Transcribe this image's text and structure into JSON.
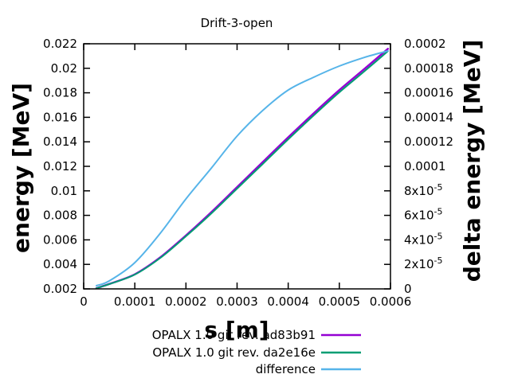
{
  "window": {
    "background": "#ffffff",
    "text_color": "#000000"
  },
  "chart_data": {
    "type": "line",
    "title": "Drift-3-open",
    "xlabel": "s [m]",
    "ylabel_left": "energy [MeV]",
    "ylabel_right": "delta energy [MeV]",
    "x_range": [
      0,
      0.0006
    ],
    "y_left_range": [
      0.002,
      0.022
    ],
    "y_right_range": [
      0,
      0.0002
    ],
    "grid": false,
    "legend_position": "below-bottom-right",
    "x_ticks": {
      "values": [
        0,
        0.0001,
        0.0002,
        0.0003,
        0.0004,
        0.0005,
        0.0006
      ],
      "labels": [
        "0",
        "0.0001",
        "0.0002",
        "0.0003",
        "0.0004",
        "0.0005",
        "0.0006"
      ]
    },
    "y_left_ticks": {
      "values": [
        0.002,
        0.004,
        0.006,
        0.008,
        0.01,
        0.012,
        0.014,
        0.016,
        0.018,
        0.02,
        0.022
      ],
      "labels": [
        "0.002",
        "0.004",
        "0.006",
        "0.008",
        "0.01",
        "0.012",
        "0.014",
        "0.016",
        "0.018",
        "0.02",
        "0.022"
      ]
    },
    "y_right_ticks": {
      "values": [
        0,
        2e-05,
        4e-05,
        6e-05,
        8e-05,
        0.0001,
        0.00012,
        0.00014,
        0.00016,
        0.00018,
        0.0002
      ],
      "labels": [
        "0",
        "2x10^-5",
        "4x10^-5",
        "6x10^-5",
        "8x10^-5",
        "0.0001",
        "0.00012",
        "0.00014",
        "0.00016",
        "0.00018",
        "0.0002"
      ]
    },
    "x": [
      2.5e-05,
      5e-05,
      0.0001,
      0.00015,
      0.0002,
      0.00025,
      0.0003,
      0.00035,
      0.0004,
      0.00045,
      0.0005,
      0.00055,
      0.000595
    ],
    "series": [
      {
        "name": "OPALX 1.0 git rev. ad83b91",
        "color": "#9400d3",
        "axis": "left",
        "values": [
          0.00206,
          0.0024,
          0.00319,
          0.00458,
          0.00636,
          0.00827,
          0.0103,
          0.01234,
          0.01437,
          0.01633,
          0.01822,
          0.01998,
          0.02159
        ]
      },
      {
        "name": "OPALX 1.0 git rev. da2e16e",
        "color": "#009e73",
        "axis": "left",
        "values": [
          0.00206,
          0.00239,
          0.00317,
          0.00453,
          0.00629,
          0.00817,
          0.01018,
          0.01219,
          0.01421,
          0.01616,
          0.01804,
          0.01979,
          0.0214
        ]
      },
      {
        "name": "difference",
        "color": "#56b4e9",
        "axis": "right",
        "values": [
          2.6e-06,
          6.5e-06,
          2.14e-05,
          4.55e-05,
          7.34e-05,
          9.87e-05,
          0.0001247,
          0.0001455,
          0.0001623,
          0.0001727,
          0.0001818,
          0.000189,
          0.0001942
        ]
      }
    ]
  }
}
